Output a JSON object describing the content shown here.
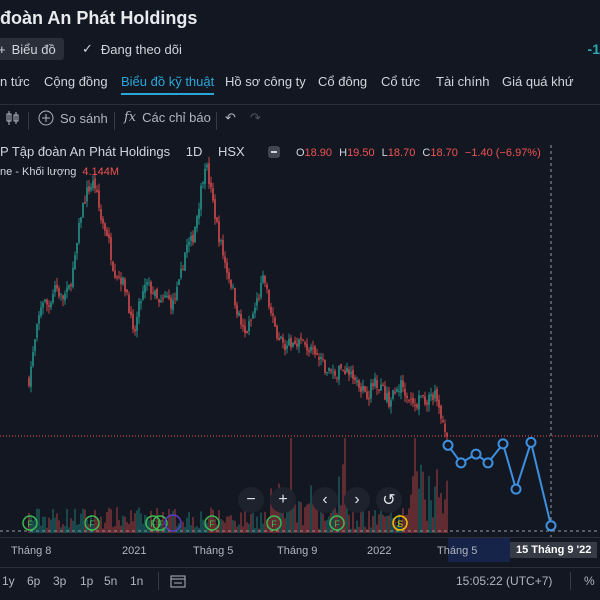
{
  "header": {
    "title": "đoàn An Phát Holdings",
    "chart_button": "Biểu đồ",
    "follow_label": "Đang theo dõi",
    "change": "-1"
  },
  "tabs": [
    {
      "label": "n tức"
    },
    {
      "label": "Cộng đồng"
    },
    {
      "label": "Biểu đồ kỹ thuật"
    },
    {
      "label": "Hồ sơ công ty"
    },
    {
      "label": "Cổ đông"
    },
    {
      "label": "Cổ tức"
    },
    {
      "label": "Tài chính"
    },
    {
      "label": "Giá quá khứ"
    }
  ],
  "toolbar": {
    "compare": "So sánh",
    "indicators": "Các chỉ báo"
  },
  "legend": {
    "symbol": "P Tập đoàn An Phát Holdings",
    "interval": "1D",
    "exchange": "HSX",
    "o_label": "O",
    "o": "18.90",
    "h_label": "H",
    "h": "19.50",
    "l_label": "L",
    "l": "18.70",
    "c_label": "C",
    "c": "18.70",
    "change": "−1.40 (−6.97%)",
    "volume_label": "ne - Khối lượng",
    "volume": "4.144M"
  },
  "chart_data": {
    "type": "candlestick",
    "series": [
      {
        "name": "Giá",
        "values": [
          16.5,
          19.3,
          22.0,
          21.5,
          23.0,
          22.0,
          22.5,
          24.5,
          28.0,
          29.5,
          30.0,
          27.5,
          26.5,
          24.0,
          23.5,
          22.5,
          19.3,
          21.8,
          23.0,
          22.5,
          21.5,
          22.2,
          21.6,
          23.0,
          25.5,
          26.0,
          28.5,
          31.5,
          29.0,
          26.5,
          24.5,
          23.0,
          21.0,
          19.5,
          20.5,
          22.0,
          23.5,
          21.0,
          19.5,
          19.0,
          18.8,
          19.2,
          19.0,
          18.5,
          18.0,
          17.5,
          17.0,
          16.8,
          17.3,
          17.0,
          16.5,
          16.0,
          15.5,
          16.5,
          16.0,
          15.0,
          15.5,
          16.2,
          15.5,
          14.5,
          15.5,
          15.0,
          15.6,
          14.0,
          13.0
        ]
      },
      {
        "name": "Dự báo",
        "values": [
          12.0,
          10.8,
          11.4,
          12.1,
          10.9,
          12.2,
          9.0,
          11.0,
          6.5
        ]
      }
    ],
    "volume": "4.144M",
    "x_labels": [
      "Tháng 8",
      "2021",
      "Tháng 5",
      "Tháng 9",
      "2022",
      "Tháng 5"
    ],
    "cursor_label": "15 Tháng 9 '22",
    "event_markers": [
      "F",
      "F",
      "F",
      "F",
      "F",
      "F",
      "F",
      "F",
      "S"
    ]
  },
  "nav": {
    "zoom_out": "−",
    "zoom_in": "+",
    "prev": "‹",
    "next": "›",
    "reset": "↺"
  },
  "ranges": [
    "1y",
    "6p",
    "3p",
    "1p",
    "5n",
    "1n"
  ],
  "status": {
    "time": "15:05:22 (UTC+7)",
    "percent": "%"
  },
  "colors": {
    "background": "#131722",
    "up": "#26a69a",
    "down": "#ef5350",
    "accent": "#2aa6d9",
    "forecast": "#3d8fe0"
  }
}
